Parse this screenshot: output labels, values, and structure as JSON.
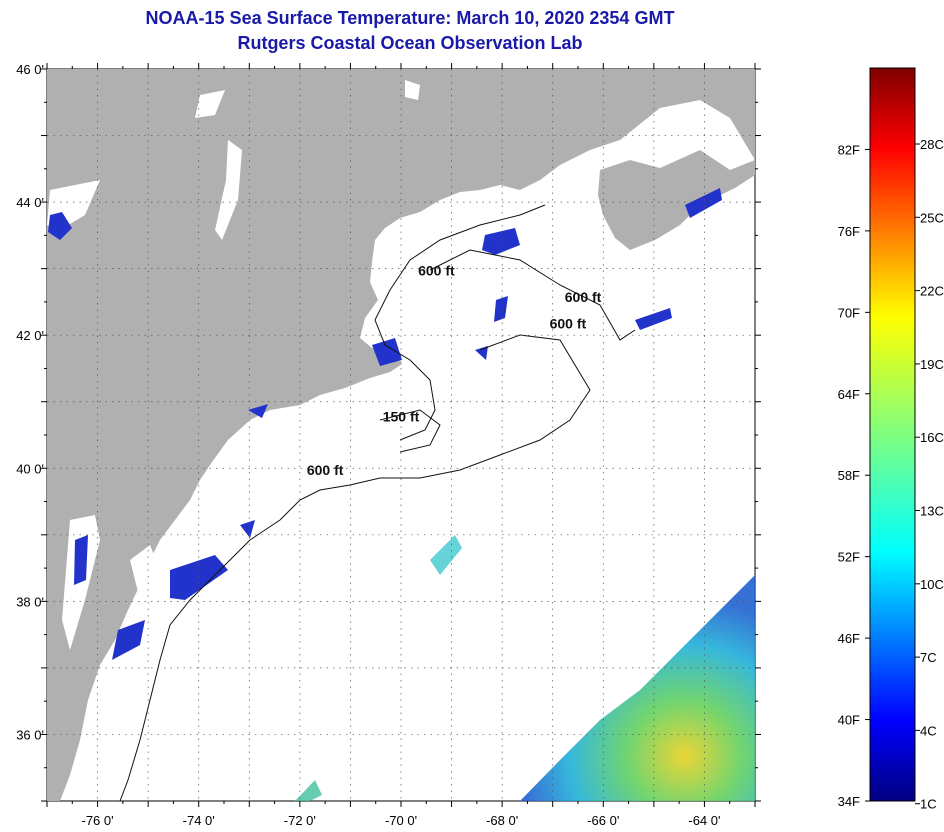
{
  "header": {
    "title": "NOAA-15 Sea Surface Temperature:  March 10, 2020 2354 GMT",
    "subtitle": "Rutgers Coastal Ocean Observation Lab"
  },
  "map": {
    "lon_range": [
      -77,
      -63
    ],
    "lat_range": [
      35,
      46
    ],
    "lon_ticks": [
      {
        "value": -76,
        "label": "-76 0'"
      },
      {
        "value": -74,
        "label": "-74 0'"
      },
      {
        "value": -72,
        "label": "-72 0'"
      },
      {
        "value": -70,
        "label": "-70 0'"
      },
      {
        "value": -68,
        "label": "-68 0'"
      },
      {
        "value": -66,
        "label": "-66 0'"
      },
      {
        "value": -64,
        "label": "-64 0'"
      }
    ],
    "lat_ticks": [
      {
        "value": 36,
        "label": "36 0'"
      },
      {
        "value": 38,
        "label": "38 0'"
      },
      {
        "value": 40,
        "label": "40 0'"
      },
      {
        "value": 42,
        "label": "42 0'"
      },
      {
        "value": 44,
        "label": "44 0'"
      },
      {
        "value": 46,
        "label": "46 0'"
      }
    ],
    "depth_labels": [
      {
        "label": "600 ft",
        "lon": -69.3,
        "lat": 42.9
      },
      {
        "label": "600 ft",
        "lon": -66.4,
        "lat": 42.5
      },
      {
        "label": "600 ft",
        "lon": -66.7,
        "lat": 42.1
      },
      {
        "label": "150 ft",
        "lon": -70.0,
        "lat": 40.7
      },
      {
        "label": "600 ft",
        "lon": -71.5,
        "lat": 39.9
      }
    ],
    "colors": {
      "land": "#b0b0b0",
      "ocean": "#ffffff",
      "cold_patch": "#2233cc"
    }
  },
  "colorbar": {
    "min_f": 34,
    "max_f": 88,
    "fahrenheit_labels": [
      "34F",
      "40F",
      "46F",
      "52F",
      "58F",
      "64F",
      "70F",
      "76F",
      "82F"
    ],
    "celsius_labels": [
      "1C",
      "4C",
      "7C",
      "10C",
      "13C",
      "16C",
      "19C",
      "22C",
      "25C",
      "28C"
    ],
    "fahrenheit_values": [
      34,
      40,
      46,
      52,
      58,
      64,
      70,
      76,
      82
    ],
    "celsius_values": [
      1,
      4,
      7,
      10,
      13,
      16,
      19,
      22,
      25,
      28
    ]
  }
}
